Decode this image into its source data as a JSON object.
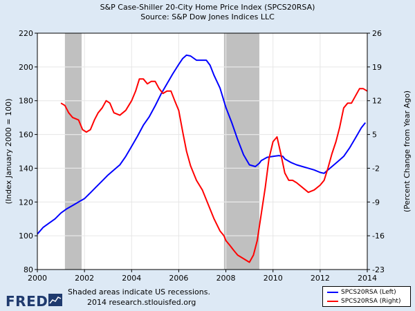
{
  "chart_data": {
    "type": "line",
    "title": "S&P Case-Shiller 20-City Home Price Index (SPCS20RSA)",
    "subtitle": "Source: S&P Dow Jones Indices LLC",
    "xlabel": "",
    "ylabel": "(Index January 2000 = 100)",
    "y2label": "(Percent Change from Year Ago)",
    "xlim": [
      2000,
      2014
    ],
    "ylim": [
      80,
      220
    ],
    "y2lim": [
      -23,
      26
    ],
    "x_ticks": [
      "2000",
      "2002",
      "2004",
      "2006",
      "2008",
      "2010",
      "2012",
      "2014"
    ],
    "y_ticks": [
      "80",
      "100",
      "120",
      "140",
      "160",
      "180",
      "200",
      "220"
    ],
    "y2_ticks": [
      "-23",
      "-16",
      "-9",
      "-2",
      "5",
      "12",
      "19",
      "26"
    ],
    "grid": true,
    "recessions": [
      [
        2001.17,
        2001.88
      ],
      [
        2007.92,
        2009.42
      ]
    ],
    "series": [
      {
        "name": "SPCS20RSA (Left)",
        "axis": "left",
        "color": "#0000ff",
        "x": [
          2000.0,
          2000.25,
          2000.5,
          2000.75,
          2001.0,
          2001.25,
          2001.5,
          2001.75,
          2002.0,
          2002.25,
          2002.5,
          2002.75,
          2003.0,
          2003.25,
          2003.5,
          2003.75,
          2004.0,
          2004.25,
          2004.5,
          2004.75,
          2005.0,
          2005.25,
          2005.5,
          2005.75,
          2006.0,
          2006.17,
          2006.33,
          2006.5,
          2006.75,
          2007.0,
          2007.17,
          2007.33,
          2007.5,
          2007.75,
          2008.0,
          2008.25,
          2008.5,
          2008.75,
          2009.0,
          2009.25,
          2009.42,
          2009.5,
          2009.75,
          2010.0,
          2010.25,
          2010.42,
          2010.5,
          2010.75,
          2011.0,
          2011.25,
          2011.5,
          2011.75,
          2012.0,
          2012.17,
          2012.25,
          2012.5,
          2012.75,
          2013.0,
          2013.25,
          2013.5,
          2013.75,
          2013.92
        ],
        "values": [
          101,
          105,
          107.5,
          110,
          113.5,
          116,
          118,
          120,
          122,
          125.5,
          129,
          132.5,
          136,
          139,
          142,
          147,
          153,
          159,
          165.5,
          170.5,
          177,
          184,
          190,
          196,
          201.5,
          205,
          207,
          206.5,
          204,
          204,
          204,
          201,
          195,
          187.5,
          176,
          167,
          157,
          148,
          142,
          141,
          143,
          144.5,
          146.5,
          147,
          147.5,
          147,
          145.5,
          143.5,
          142,
          141,
          140,
          139,
          137.5,
          137,
          138,
          141,
          144,
          147,
          152,
          158,
          164,
          167
        ]
      },
      {
        "name": "SPCS20RSA (Right)",
        "axis": "right",
        "color": "#ff0000",
        "x": [
          2001.0,
          2001.17,
          2001.33,
          2001.5,
          2001.75,
          2001.92,
          2002.08,
          2002.25,
          2002.42,
          2002.58,
          2002.75,
          2002.92,
          2003.08,
          2003.25,
          2003.5,
          2003.75,
          2004.0,
          2004.17,
          2004.33,
          2004.5,
          2004.67,
          2004.83,
          2005.0,
          2005.17,
          2005.33,
          2005.5,
          2005.67,
          2005.83,
          2006.0,
          2006.17,
          2006.33,
          2006.5,
          2006.75,
          2007.0,
          2007.25,
          2007.5,
          2007.75,
          2007.92,
          2008.0,
          2008.17,
          2008.33,
          2008.5,
          2008.67,
          2008.83,
          2009.0,
          2009.17,
          2009.33,
          2009.5,
          2009.67,
          2009.83,
          2010.0,
          2010.17,
          2010.33,
          2010.5,
          2010.67,
          2010.83,
          2011.0,
          2011.25,
          2011.5,
          2011.75,
          2012.0,
          2012.17,
          2012.33,
          2012.5,
          2012.67,
          2012.83,
          2013.0,
          2013.17,
          2013.33,
          2013.5,
          2013.67,
          2013.83,
          2014.0
        ],
        "values": [
          11.5,
          11,
          9.5,
          8.5,
          8,
          6,
          5.5,
          6,
          8,
          9.5,
          10.5,
          12,
          11.5,
          9.5,
          9,
          10,
          12,
          14,
          16.5,
          16.5,
          15.5,
          16,
          16,
          14.5,
          13.5,
          14,
          14,
          12,
          10,
          5.5,
          1.5,
          -1.5,
          -4.5,
          -6.5,
          -9.5,
          -12.5,
          -15,
          -16,
          -17,
          -18,
          -19,
          -20,
          -20.5,
          -21,
          -21.5,
          -20,
          -17,
          -11.5,
          -6,
          0,
          3.5,
          4.5,
          1,
          -3,
          -4.5,
          -4.5,
          -5,
          -6,
          -7,
          -6.5,
          -5.5,
          -4.5,
          -2,
          1,
          3.5,
          6.5,
          10.5,
          11.5,
          11.5,
          13,
          14.5,
          14.5,
          14
        ]
      }
    ]
  },
  "footer": {
    "logo_text": "FRED",
    "recession_note": "Shaded areas indicate US recessions.",
    "source_line": "2014 research.stlouisfed.org"
  },
  "legend": {
    "items": [
      "SPCS20RSA (Left)",
      "SPCS20RSA (Right)"
    ]
  }
}
